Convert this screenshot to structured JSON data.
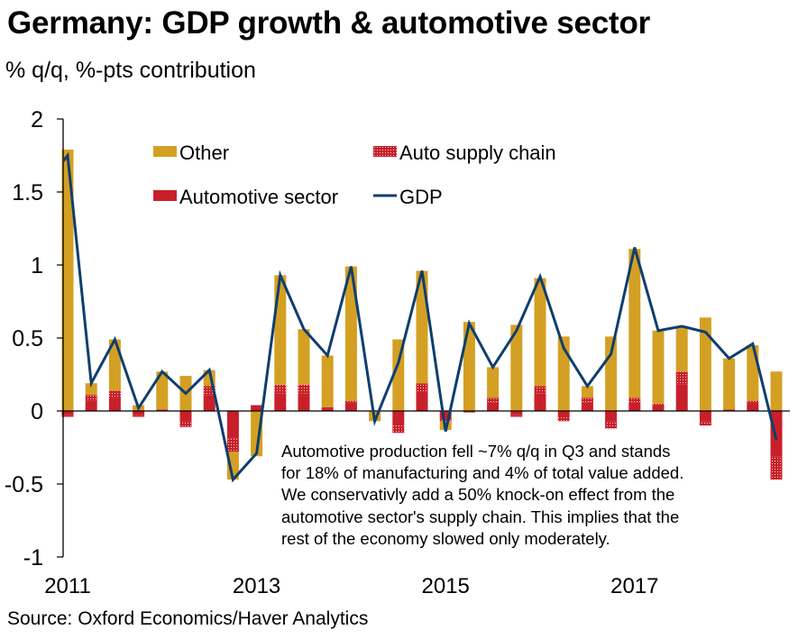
{
  "title": "Germany: GDP growth & automotive sector",
  "subtitle": "% q/q, %-pts contribution",
  "source": "Source: Oxford Economics/Haver Analytics",
  "colors": {
    "other": "#D4A023",
    "automotive": "#C8202A",
    "supply_chain_dots": "#F3C9CB",
    "gdp": "#0E3E6F"
  },
  "chart_data": {
    "type": "bar",
    "stacked": true,
    "title": "Germany: GDP growth & automotive sector",
    "ylabel": "% q/q, %-pts contribution",
    "xlabel": "",
    "ylim": [
      -1,
      2
    ],
    "yticks": [
      -1,
      -0.5,
      0,
      0.5,
      1,
      1.5,
      2
    ],
    "ytick_labels": [
      "-1",
      "-0.5",
      "0",
      "0.5",
      "1",
      "1.5",
      "2"
    ],
    "x_tick_labels": [
      {
        "label": "2011",
        "at": "2011Q1"
      },
      {
        "label": "2013",
        "at": "2013Q1"
      },
      {
        "label": "2015",
        "at": "2015Q1"
      },
      {
        "label": "2017",
        "at": "2017Q1"
      }
    ],
    "grid": false,
    "legend_placement": "top-center",
    "legend": [
      {
        "name": "Other",
        "kind": "bar-solid"
      },
      {
        "name": "Auto supply chain",
        "kind": "bar-dotted"
      },
      {
        "name": "Automotive sector",
        "kind": "bar-solid"
      },
      {
        "name": "GDP",
        "kind": "line"
      }
    ],
    "categories": [
      "2011Q1",
      "2011Q2",
      "2011Q3",
      "2011Q4",
      "2012Q1",
      "2012Q2",
      "2012Q3",
      "2012Q4",
      "2013Q1",
      "2013Q2",
      "2013Q3",
      "2013Q4",
      "2014Q1",
      "2014Q2",
      "2014Q3",
      "2014Q4",
      "2015Q1",
      "2015Q2",
      "2015Q3",
      "2015Q4",
      "2016Q1",
      "2016Q2",
      "2016Q3",
      "2016Q4",
      "2017Q1",
      "2017Q2",
      "2017Q3",
      "2017Q4",
      "2018Q1",
      "2018Q2",
      "2018Q3"
    ],
    "series": [
      {
        "name": "Automotive sector",
        "type": "bar",
        "values": [
          -0.03,
          0.07,
          0.09,
          -0.03,
          0.01,
          -0.07,
          0.11,
          -0.19,
          0.04,
          0.12,
          0.12,
          0.015,
          0.05,
          0.0,
          -0.1,
          0.13,
          -0.05,
          -0.01,
          0.06,
          -0.03,
          0.12,
          -0.04,
          0.06,
          -0.07,
          0.06,
          0.04,
          0.18,
          -0.07,
          0.01,
          0.05,
          -0.31
        ]
      },
      {
        "name": "Auto supply chain",
        "type": "bar",
        "values": [
          -0.01,
          0.04,
          0.05,
          -0.01,
          0.0,
          -0.04,
          0.06,
          -0.09,
          0.0,
          0.06,
          0.06,
          0.01,
          0.02,
          0.0,
          -0.05,
          0.06,
          -0.02,
          0.0,
          0.03,
          -0.01,
          0.05,
          -0.03,
          0.03,
          -0.05,
          0.03,
          0.01,
          0.09,
          -0.03,
          0.0,
          0.02,
          -0.16
        ]
      },
      {
        "name": "Other",
        "type": "bar",
        "values": [
          1.79,
          0.08,
          0.35,
          0.04,
          0.26,
          0.24,
          0.11,
          -0.19,
          -0.31,
          0.75,
          0.38,
          0.355,
          0.92,
          -0.07,
          0.49,
          0.77,
          -0.06,
          0.61,
          0.21,
          0.59,
          0.74,
          0.51,
          0.08,
          0.51,
          1.02,
          0.5,
          0.31,
          0.64,
          0.35,
          0.38,
          0.27
        ]
      },
      {
        "name": "GDP",
        "type": "line",
        "prior_value": 1.54,
        "values": [
          1.75,
          0.19,
          0.49,
          0.02,
          0.27,
          0.12,
          0.28,
          -0.47,
          -0.29,
          0.93,
          0.56,
          0.38,
          0.99,
          -0.07,
          0.33,
          0.96,
          -0.14,
          0.6,
          0.3,
          0.55,
          0.92,
          0.43,
          0.17,
          0.39,
          1.12,
          0.55,
          0.58,
          0.54,
          0.36,
          0.46,
          -0.2
        ]
      }
    ],
    "annotation": [
      "Automotive production fell ~7% q/q in Q3 and stands",
      "for 18% of manufacturing  and 4% of total value added.",
      "We conservativly add a 50% knock-on effect from the",
      "automotive sector's supply chain. This implies that the",
      "rest of the economy slowed only moderately."
    ]
  }
}
